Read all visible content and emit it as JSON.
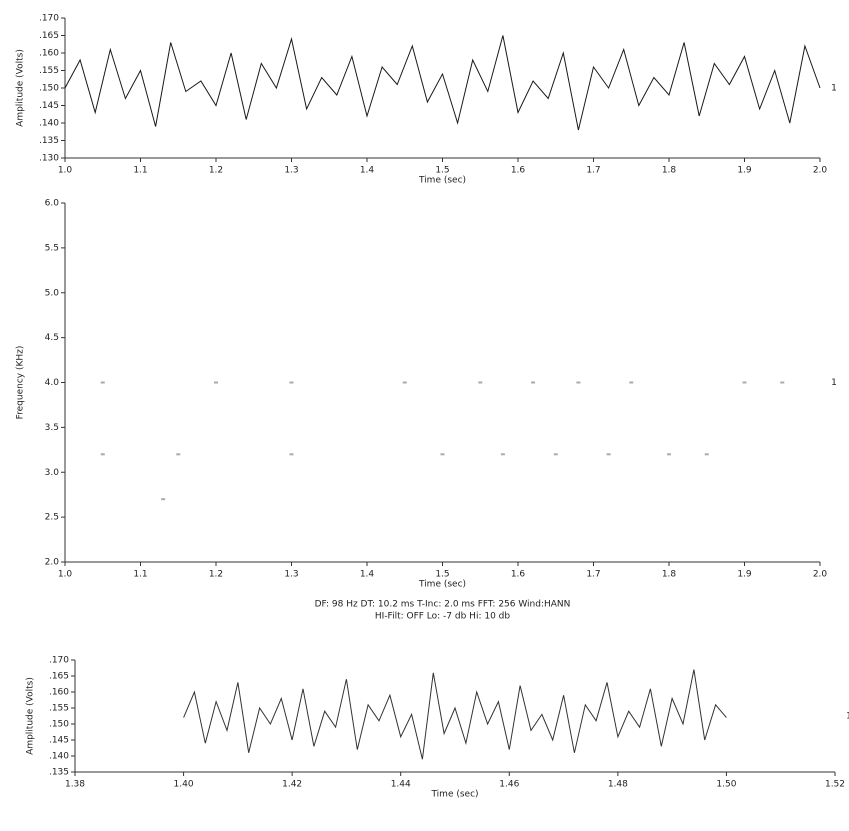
{
  "chart_data": [
    {
      "type": "line",
      "xlabel": "Time (sec)",
      "ylabel": "Amplitude (Volts)",
      "annotation": "1",
      "color": "#1a1a1a",
      "x": [
        1,
        1.02,
        1.04,
        1.06,
        1.08,
        1.1,
        1.12,
        1.14,
        1.16,
        1.18,
        1.2,
        1.22,
        1.24,
        1.26,
        1.28,
        1.3,
        1.32,
        1.34,
        1.36,
        1.38,
        1.4,
        1.42,
        1.44,
        1.46,
        1.48,
        1.5,
        1.52,
        1.54,
        1.56,
        1.58,
        1.6,
        1.62,
        1.64,
        1.66,
        1.68,
        1.7,
        1.72,
        1.74,
        1.76,
        1.78,
        1.8,
        1.82,
        1.84,
        1.86,
        1.88,
        1.9,
        1.92,
        1.94,
        1.96,
        1.98,
        2
      ],
      "values": [
        0.15,
        0.158,
        0.143,
        0.161,
        0.147,
        0.155,
        0.139,
        0.163,
        0.149,
        0.152,
        0.145,
        0.16,
        0.141,
        0.157,
        0.15,
        0.164,
        0.144,
        0.153,
        0.148,
        0.159,
        0.142,
        0.156,
        0.151,
        0.162,
        0.146,
        0.154,
        0.14,
        0.158,
        0.149,
        0.165,
        0.143,
        0.152,
        0.147,
        0.16,
        0.138,
        0.156,
        0.15,
        0.161,
        0.145,
        0.153,
        0.148,
        0.163,
        0.142,
        0.157,
        0.151,
        0.159,
        0.144,
        0.155,
        0.14,
        0.162,
        0.15
      ],
      "xlim": [
        1,
        2
      ],
      "xticks": [
        {
          "value": 1,
          "label": "1.0"
        },
        1.1,
        1.2,
        1.3,
        1.4,
        1.5,
        1.6,
        1.7,
        1.8,
        1.9,
        {
          "value": 2,
          "label": "2.0"
        }
      ],
      "ylim": [
        0.13,
        0.17
      ],
      "yticks": [
        {
          "value": 0.13,
          "label": ".130"
        },
        {
          "value": 0.135,
          "label": ".135"
        },
        {
          "value": 0.14,
          "label": ".140"
        },
        {
          "value": 0.145,
          "label": ".145"
        },
        {
          "value": 0.15,
          "label": ".150"
        },
        {
          "value": 0.155,
          "label": ".155"
        },
        {
          "value": 0.16,
          "label": ".160"
        },
        {
          "value": 0.165,
          "label": ".165"
        },
        {
          "value": 0.17,
          "label": ".170"
        }
      ]
    },
    {
      "type": "scatter",
      "xlabel": "Time (sec)",
      "ylabel": "Frequency (KHz)",
      "annotation": "1",
      "color": "#aaaaaa",
      "x": [
        1.05,
        1.2,
        1.3,
        1.45,
        1.55,
        1.62,
        1.68,
        1.75,
        1.9,
        1.95,
        1.05,
        1.15,
        1.3,
        1.5,
        1.58,
        1.65,
        1.72,
        1.8,
        1.85,
        1.13
      ],
      "values": [
        4,
        4,
        4,
        4,
        4,
        4,
        4,
        4,
        4,
        4,
        3.2,
        3.2,
        3.2,
        3.2,
        3.2,
        3.2,
        3.2,
        3.2,
        3.2,
        2.7
      ],
      "xlim": [
        1,
        2
      ],
      "xticks": [
        {
          "value": 1,
          "label": "1.0"
        },
        1.1,
        1.2,
        1.3,
        1.4,
        1.5,
        1.6,
        1.7,
        1.8,
        1.9,
        {
          "value": 2,
          "label": "2.0"
        }
      ],
      "ylim": [
        2,
        6
      ],
      "yticks": [
        {
          "value": 2,
          "label": "2.0"
        },
        2.5,
        {
          "value": 3,
          "label": "3.0"
        },
        3.5,
        {
          "value": 4,
          "label": "4.0"
        },
        4.5,
        {
          "value": 5,
          "label": "5.0"
        },
        5.5,
        {
          "value": 6,
          "label": "6.0"
        }
      ],
      "caption": [
        "DF: 98 Hz    DT: 10.2 ms    T-Inc: 2.0 ms    FFT: 256    Wind:HANN",
        "HI-Filt: OFF    Lo: -7 db    Hi: 10 db"
      ]
    },
    {
      "type": "line",
      "xlabel": "Time (sec)",
      "ylabel": "Amplitude (Volts)",
      "annotation": "1",
      "color": "#333333",
      "x": [
        1.4,
        1.402,
        1.404,
        1.406,
        1.408,
        1.41,
        1.412,
        1.414,
        1.416,
        1.418,
        1.42,
        1.422,
        1.424,
        1.426,
        1.428,
        1.43,
        1.432,
        1.434,
        1.436,
        1.438,
        1.44,
        1.442,
        1.444,
        1.446,
        1.448,
        1.45,
        1.452,
        1.454,
        1.456,
        1.458,
        1.46,
        1.462,
        1.464,
        1.466,
        1.468,
        1.47,
        1.472,
        1.474,
        1.476,
        1.478,
        1.48,
        1.482,
        1.484,
        1.486,
        1.488,
        1.49,
        1.492,
        1.494,
        1.496,
        1.498,
        1.5
      ],
      "values": [
        0.152,
        0.16,
        0.144,
        0.157,
        0.148,
        0.163,
        0.141,
        0.155,
        0.15,
        0.158,
        0.145,
        0.161,
        0.143,
        0.154,
        0.149,
        0.164,
        0.142,
        0.156,
        0.151,
        0.159,
        0.146,
        0.153,
        0.139,
        0.166,
        0.147,
        0.155,
        0.144,
        0.16,
        0.15,
        0.157,
        0.142,
        0.162,
        0.148,
        0.153,
        0.145,
        0.159,
        0.141,
        0.156,
        0.151,
        0.163,
        0.146,
        0.154,
        0.149,
        0.161,
        0.143,
        0.158,
        0.15,
        0.167,
        0.145,
        0.156,
        0.152
      ],
      "xlim": [
        1.38,
        1.52
      ],
      "xticks": [
        1.38,
        {
          "value": 1.4,
          "label": "1.40"
        },
        1.42,
        1.44,
        1.46,
        1.48,
        {
          "value": 1.5,
          "label": "1.50"
        },
        1.52
      ],
      "ylim": [
        0.135,
        0.17
      ],
      "yticks": [
        {
          "value": 0.135,
          "label": ".135"
        },
        {
          "value": 0.14,
          "label": ".140"
        },
        {
          "value": 0.145,
          "label": ".145"
        },
        {
          "value": 0.15,
          "label": ".150"
        },
        {
          "value": 0.155,
          "label": ".155"
        },
        {
          "value": 0.16,
          "label": ".160"
        },
        {
          "value": 0.165,
          "label": ".165"
        },
        {
          "value": 0.17,
          "label": ".170"
        }
      ]
    }
  ]
}
